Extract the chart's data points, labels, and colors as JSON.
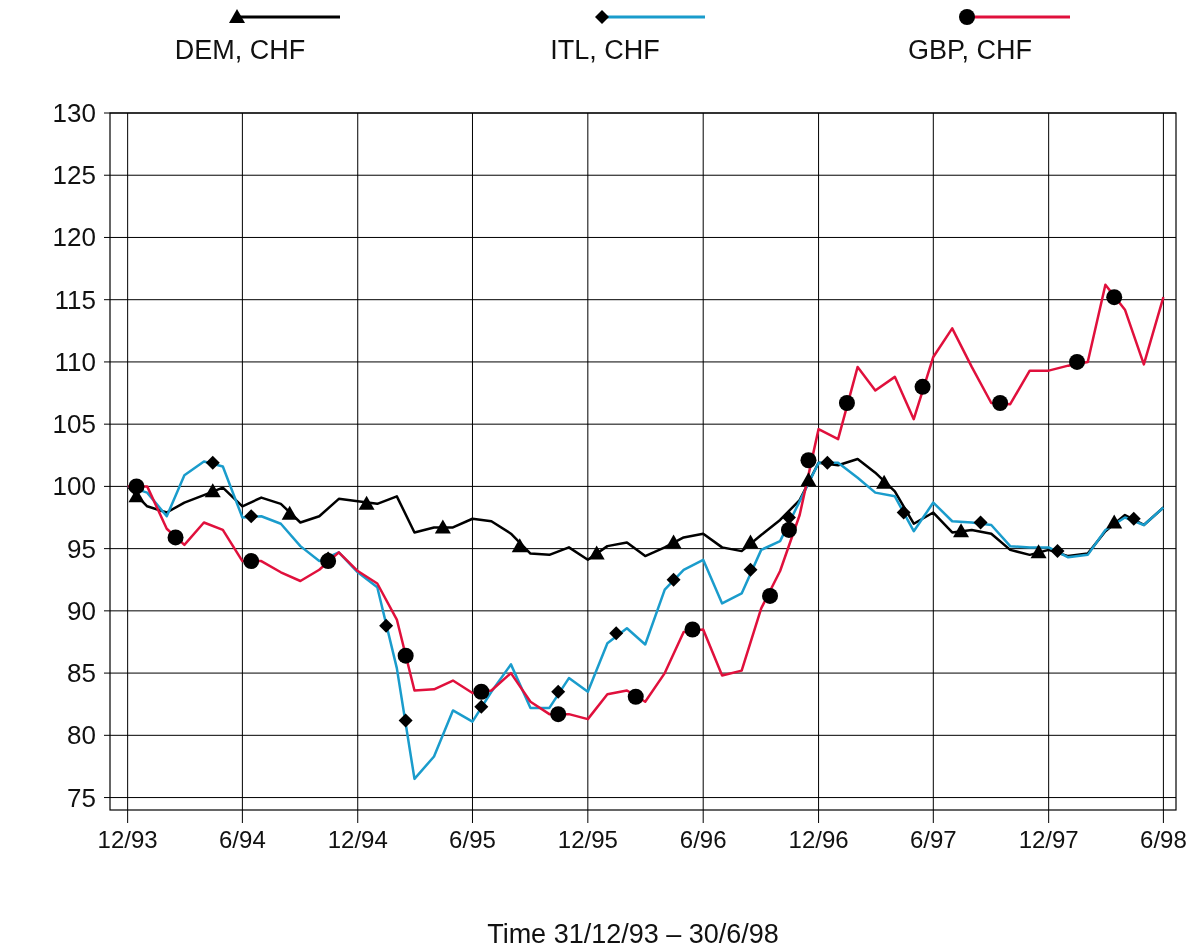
{
  "chart_data": {
    "type": "line",
    "xlabel": "Time 31/12/93 – 30/6/98",
    "x": [
      "1993-12",
      "1994-01",
      "1994-02",
      "1994-03",
      "1994-04",
      "1994-05",
      "1994-06",
      "1994-07",
      "1994-08",
      "1994-09",
      "1994-10",
      "1994-11",
      "1994-12",
      "1995-01",
      "1995-02",
      "1995-03",
      "1995-04",
      "1995-05",
      "1995-06",
      "1995-07",
      "1995-08",
      "1995-09",
      "1995-10",
      "1995-11",
      "1995-12",
      "1996-01",
      "1996-02",
      "1996-03",
      "1996-04",
      "1996-05",
      "1996-06",
      "1996-07",
      "1996-08",
      "1996-09",
      "1996-10",
      "1996-11",
      "1996-12",
      "1997-01",
      "1997-02",
      "1997-03",
      "1997-04",
      "1997-05",
      "1997-06",
      "1997-07",
      "1997-08",
      "1997-09",
      "1997-10",
      "1997-11",
      "1997-12",
      "1998-01",
      "1998-02",
      "1998-03",
      "1998-04",
      "1998-05",
      "1998-06"
    ],
    "series": [
      {
        "name": "DEM, CHF",
        "color": "#000000",
        "values": [
          100,
          98.4,
          97.9,
          98.7,
          99.3,
          99.9,
          98.4,
          99.1,
          98.6,
          97.1,
          97.6,
          99,
          98.8,
          98.6,
          99.2,
          96.3,
          96.7,
          96.7,
          97.4,
          97.2,
          96.2,
          94.6,
          94.5,
          95.1,
          94.1,
          95.2,
          95.5,
          94.4,
          95.1,
          95.9,
          96.2,
          95.1,
          94.8,
          96.1,
          97.3,
          98.9,
          101.9,
          101.7,
          102.2,
          101.1,
          99.6,
          97,
          97.9,
          96.3,
          96.5,
          96.2,
          94.9,
          94.5,
          94.9,
          94.4,
          94.6,
          96.4,
          97.7,
          96.9,
          98.3
        ]
      },
      {
        "name": "ITL, CHF",
        "color": "#1a9ccc",
        "values": [
          100,
          99.5,
          97.6,
          100.9,
          102,
          101.6,
          97.5,
          97.6,
          97,
          95.2,
          94,
          94.7,
          93.1,
          91.9,
          85.4,
          76.5,
          78.3,
          82,
          81.1,
          83.5,
          85.7,
          82.2,
          82.2,
          84.6,
          83.5,
          87.4,
          88.6,
          87.3,
          91.7,
          93.3,
          94.1,
          90.6,
          91.4,
          94.9,
          95.6,
          98.8,
          101.9,
          101.9,
          100.7,
          99.5,
          99.2,
          96.4,
          98.7,
          97.2,
          97.1,
          96.9,
          95.2,
          95.1,
          95.1,
          94.3,
          94.5,
          96.5,
          97.5,
          96.9,
          98.3
        ]
      },
      {
        "name": "GBP, CHF",
        "color": "#e0103c",
        "values": [
          100,
          100,
          96.6,
          95.3,
          97.1,
          96.5,
          94,
          94,
          93.1,
          92.4,
          93.3,
          94.7,
          93.2,
          92.2,
          89.3,
          83.6,
          83.7,
          84.4,
          83.4,
          83.6,
          85,
          82.7,
          81.7,
          81.7,
          81.3,
          83.3,
          83.6,
          82.7,
          85,
          88.3,
          88.5,
          84.8,
          85.2,
          90.2,
          93.2,
          97.7,
          104.6,
          103.8,
          109.6,
          107.7,
          108.8,
          105.4,
          110.4,
          112.7,
          109.6,
          106.7,
          106.6,
          109.3,
          109.3,
          109.7,
          110,
          116.2,
          114.2,
          109.8,
          115.2
        ]
      },
      {
        "type": "scatter",
        "marker": "triangle",
        "color": "#000000",
        "x": [
          "1993-12-15",
          "1994-04-15",
          "1994-08-15",
          "1994-12-15",
          "1995-04-15",
          "1995-08-15",
          "1995-12-15",
          "1996-04-15",
          "1996-08-15",
          "1996-11-15",
          "1997-03-15",
          "1997-07-15",
          "1997-11-15",
          "1998-03-15"
        ],
        "values": [
          99.2,
          99.6,
          97.8,
          98.6,
          96.7,
          95.2,
          94.6,
          95.5,
          95.5,
          100.5,
          100.3,
          96.4,
          94.7,
          97.1
        ]
      },
      {
        "type": "scatter",
        "marker": "diamond",
        "color": "#000000",
        "x": [
          "1994-04-15",
          "1994-06-15",
          "1994-10-15",
          "1995-01-15",
          "1995-02-15",
          "1995-06-15",
          "1995-10-15",
          "1996-01-15",
          "1996-04-15",
          "1996-08-15",
          "1996-10-15",
          "1996-12-15",
          "1997-04-15",
          "1997-08-15",
          "1997-12-15",
          "1998-04-15"
        ],
        "values": [
          101.9,
          97.6,
          94.2,
          88.8,
          81.2,
          82.3,
          83.5,
          88.2,
          92.5,
          93.3,
          97.5,
          101.9,
          97.9,
          97.1,
          94.8,
          97.4
        ]
      },
      {
        "type": "scatter",
        "marker": "circle",
        "color": "#000000",
        "x": [
          "1993-12-15",
          "1994-02-15",
          "1994-06-15",
          "1994-10-15",
          "1995-02-15",
          "1995-06-15",
          "1995-10-15",
          "1996-02-15",
          "1996-05-15",
          "1996-09-15",
          "1996-10-15",
          "1996-11-15",
          "1997-01-15",
          "1997-05-15",
          "1997-09-15",
          "1998-01-15",
          "1998-03-15"
        ],
        "values": [
          100,
          95.9,
          94,
          94,
          86.4,
          83.5,
          81.7,
          83.1,
          88.5,
          91.2,
          96.5,
          102.1,
          106.7,
          108,
          106.7,
          110,
          115.2
        ]
      }
    ],
    "xlim": [
      "1993-11-03",
      "1998-06-21"
    ],
    "xticks": [
      {
        "value": "1993-12",
        "label": "12/93"
      },
      {
        "value": "1994-06",
        "label": "6/94"
      },
      {
        "value": "1994-12",
        "label": "12/94"
      },
      {
        "value": "1995-06",
        "label": "6/95"
      },
      {
        "value": "1995-12",
        "label": "12/95"
      },
      {
        "value": "1996-06",
        "label": "6/96"
      },
      {
        "value": "1996-12",
        "label": "12/96"
      },
      {
        "value": "1997-06",
        "label": "6/97"
      },
      {
        "value": "1997-12",
        "label": "12/97"
      },
      {
        "value": "1998-06",
        "label": "6/98"
      }
    ],
    "ylim": [
      74,
      130
    ],
    "yticks": [
      75,
      80,
      85,
      90,
      95,
      100,
      105,
      110,
      115,
      120,
      125,
      130
    ],
    "grid": true,
    "legend": "top",
    "line_style": "solid"
  }
}
